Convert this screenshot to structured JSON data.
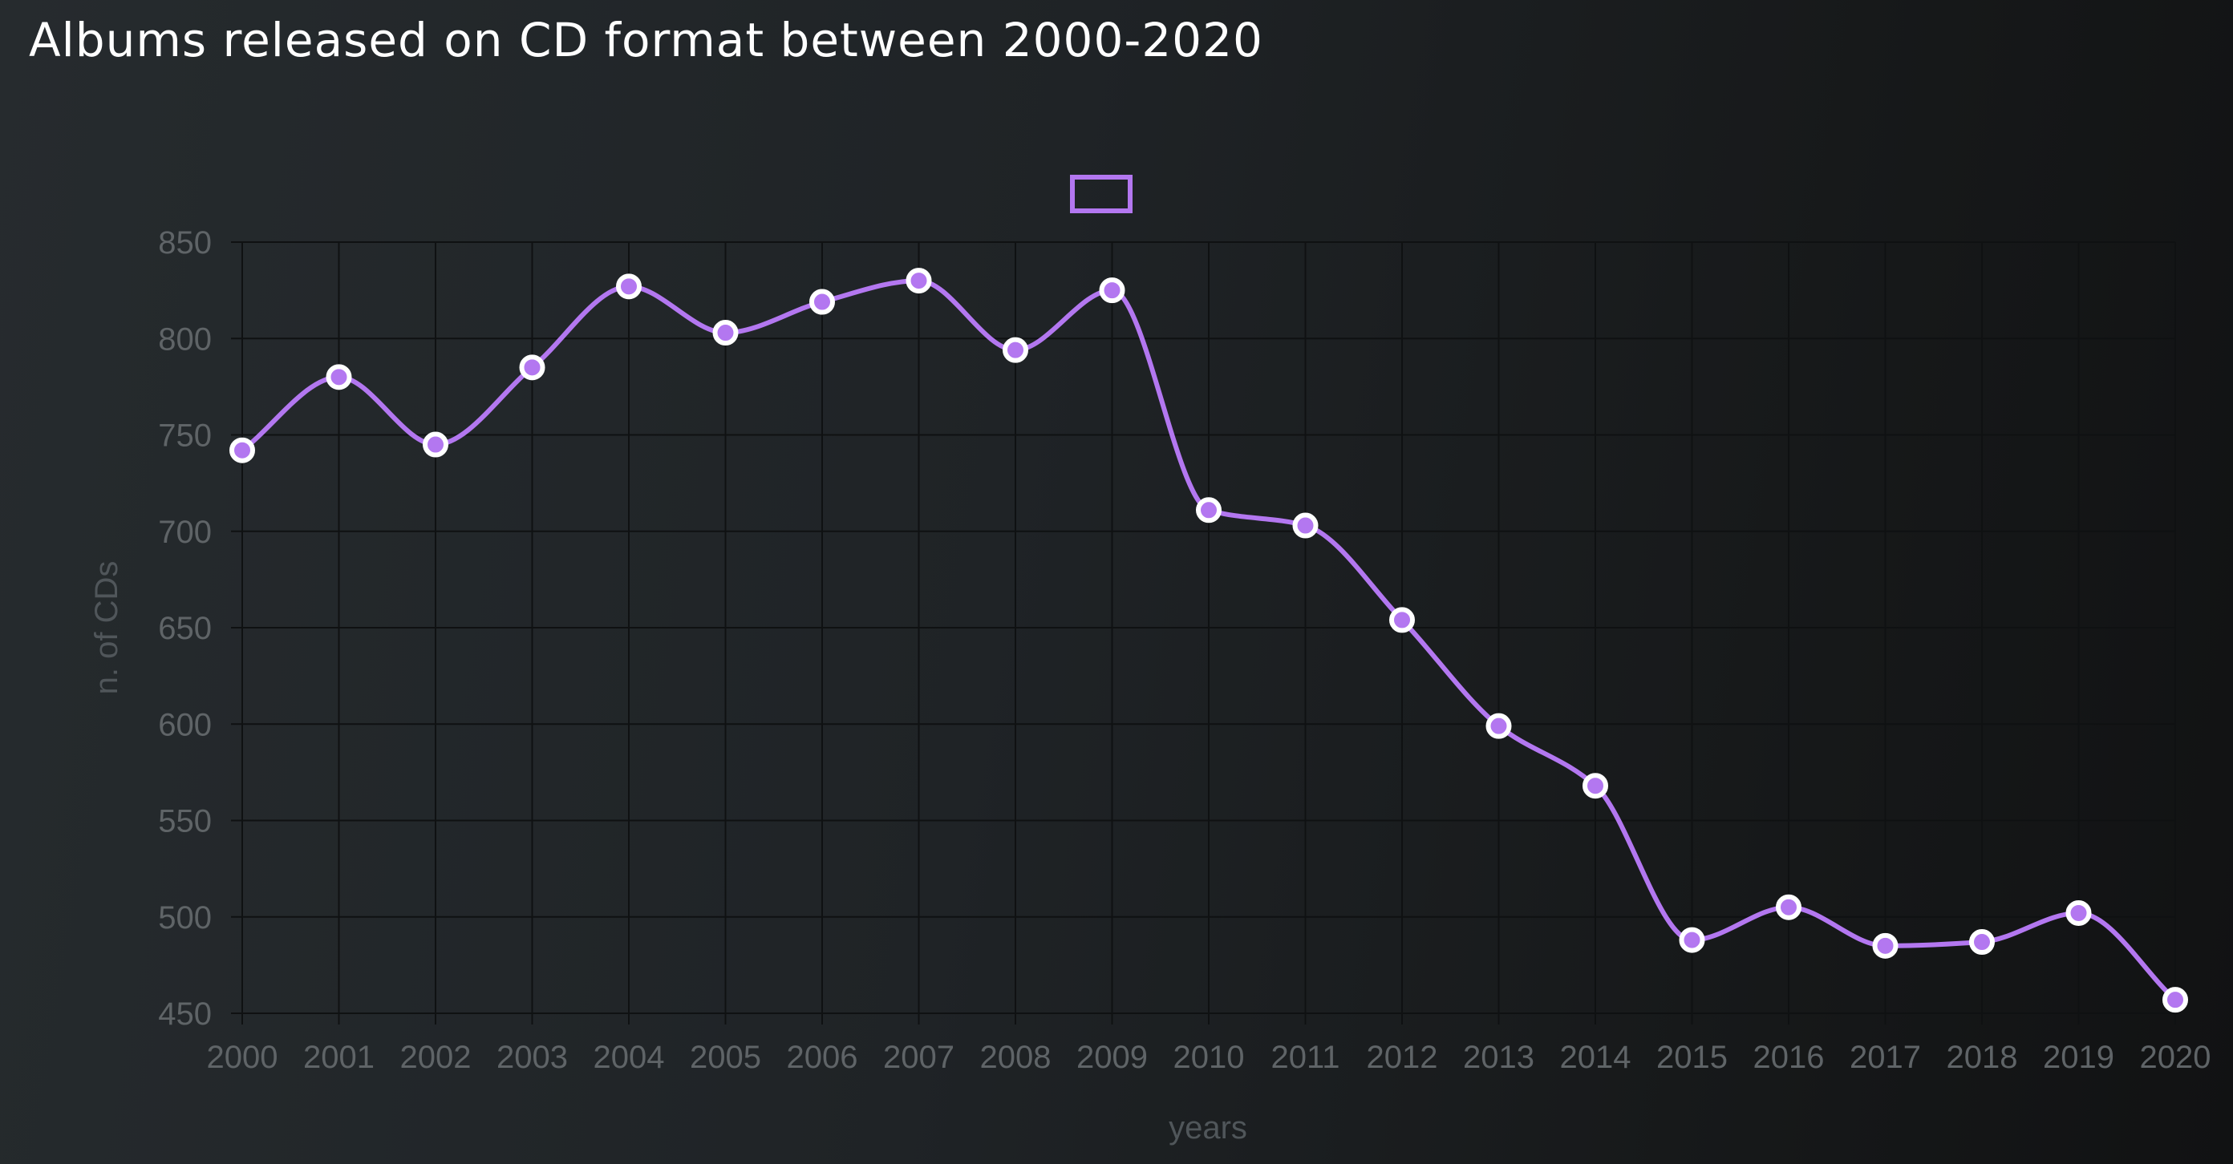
{
  "title": "Albums released on CD format between 2000-2020",
  "chart_data": {
    "type": "line",
    "title": "Albums released on CD format between 2000-2020",
    "xlabel": "years",
    "ylabel": "n. of CDs",
    "x": [
      "2000",
      "2001",
      "2002",
      "2003",
      "2004",
      "2005",
      "2006",
      "2007",
      "2008",
      "2009",
      "2010",
      "2011",
      "2012",
      "2013",
      "2014",
      "2015",
      "2016",
      "2017",
      "2018",
      "2019",
      "2020"
    ],
    "series": [
      {
        "name": "",
        "values": [
          742,
          780,
          745,
          785,
          827,
          803,
          819,
          830,
          794,
          825,
          711,
          703,
          654,
          599,
          568,
          488,
          505,
          485,
          487,
          502,
          457
        ],
        "color": "#b377f0"
      }
    ],
    "ylim": [
      450,
      850
    ],
    "yticks": [
      450,
      500,
      550,
      600,
      650,
      700,
      750,
      800,
      850
    ],
    "grid": true,
    "legend": "top-center",
    "curve": "smooth",
    "colors": {
      "line": "#b377f0",
      "point_fill": "#b377f0",
      "point_stroke": "#ffffff",
      "grid": "#0f1112",
      "tick_text": "#5f6467"
    }
  }
}
